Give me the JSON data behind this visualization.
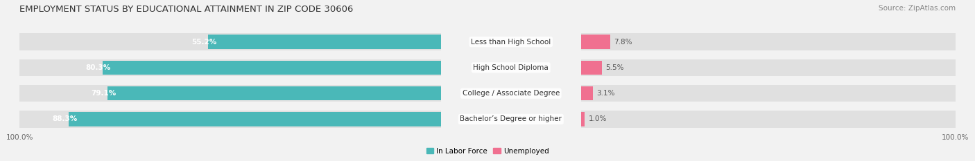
{
  "title": "EMPLOYMENT STATUS BY EDUCATIONAL ATTAINMENT IN ZIP CODE 30606",
  "source": "Source: ZipAtlas.com",
  "categories": [
    "Less than High School",
    "High School Diploma",
    "College / Associate Degree",
    "Bachelor’s Degree or higher"
  ],
  "labor_force": [
    55.2,
    80.3,
    79.1,
    88.3
  ],
  "unemployed": [
    7.8,
    5.5,
    3.1,
    1.0
  ],
  "labor_force_color": "#4ab8b8",
  "unemployed_color": "#f07090",
  "background_color": "#f2f2f2",
  "bar_background_color": "#e0e0e0",
  "title_fontsize": 9.5,
  "source_fontsize": 7.5,
  "cat_label_fontsize": 7.5,
  "bar_label_fontsize": 7.5,
  "axis_label_fontsize": 7.5,
  "legend_fontsize": 7.5,
  "figsize": [
    14.06,
    2.33
  ],
  "dpi": 100
}
